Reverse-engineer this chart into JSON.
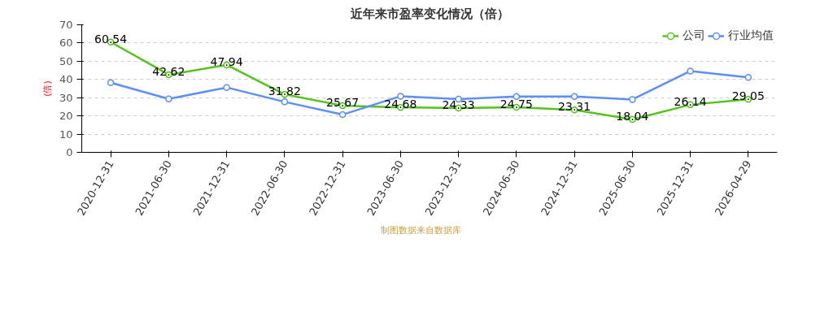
{
  "chart_data": {
    "type": "line",
    "title": "近年来市盈率变化情况（倍）",
    "ylabel": "(倍)",
    "categories": [
      "2020-12-31",
      "2021-06-30",
      "2021-12-31",
      "2022-06-30",
      "2022-12-31",
      "2023-06-30",
      "2023-12-31",
      "2024-06-30",
      "2024-12-31",
      "2025-06-30",
      "2025-12-31",
      "2026-04-29"
    ],
    "series": [
      {
        "name": "公司",
        "color": "#52c41a",
        "values": [
          60.54,
          42.62,
          47.94,
          31.82,
          25.67,
          24.68,
          24.33,
          24.75,
          23.31,
          18.04,
          26.14,
          29.05
        ],
        "data_labels": true
      },
      {
        "name": "行业均值",
        "color": "#5b8ff9",
        "values": [
          38.2,
          29.3,
          35.6,
          27.7,
          20.7,
          30.8,
          29.2,
          30.6,
          30.6,
          29.0,
          44.6,
          41.1
        ]
      }
    ],
    "ylim": [
      0,
      70
    ],
    "yticks": [
      0,
      10,
      20,
      30,
      40,
      50,
      60,
      70
    ],
    "grid": "y",
    "legend": "top right",
    "marker": "circle",
    "line_style": "solid",
    "annotations": [
      "制图数据来自数据库"
    ]
  }
}
